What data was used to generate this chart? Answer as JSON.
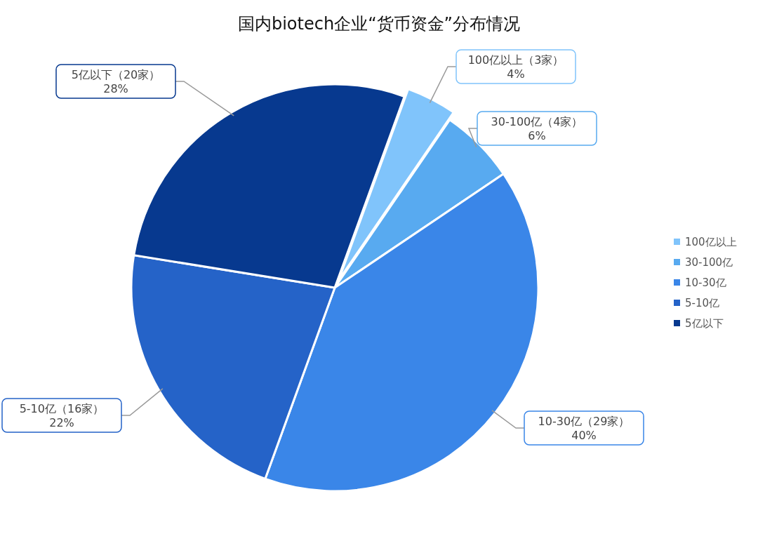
{
  "chart_data": {
    "type": "pie",
    "title": "国内biotech企业“货币资金”分布情况",
    "categories": [
      "100亿以上",
      "30-100亿",
      "10-30亿",
      "5-10亿",
      "5亿以下"
    ],
    "values": [
      4,
      6,
      40,
      22,
      28
    ],
    "colors": [
      "#80c4fb",
      "#58aaf0",
      "#3a86e8",
      "#2563c8",
      "#07398f"
    ],
    "value_labels": [
      "100亿以上（3家）\n4%",
      "30-100亿（4家）\n6%",
      "10-30亿（29家）\n40%",
      "5-10亿（16家）\n22%",
      "5亿以下（20家）\n28%"
    ],
    "legend": "right"
  }
}
